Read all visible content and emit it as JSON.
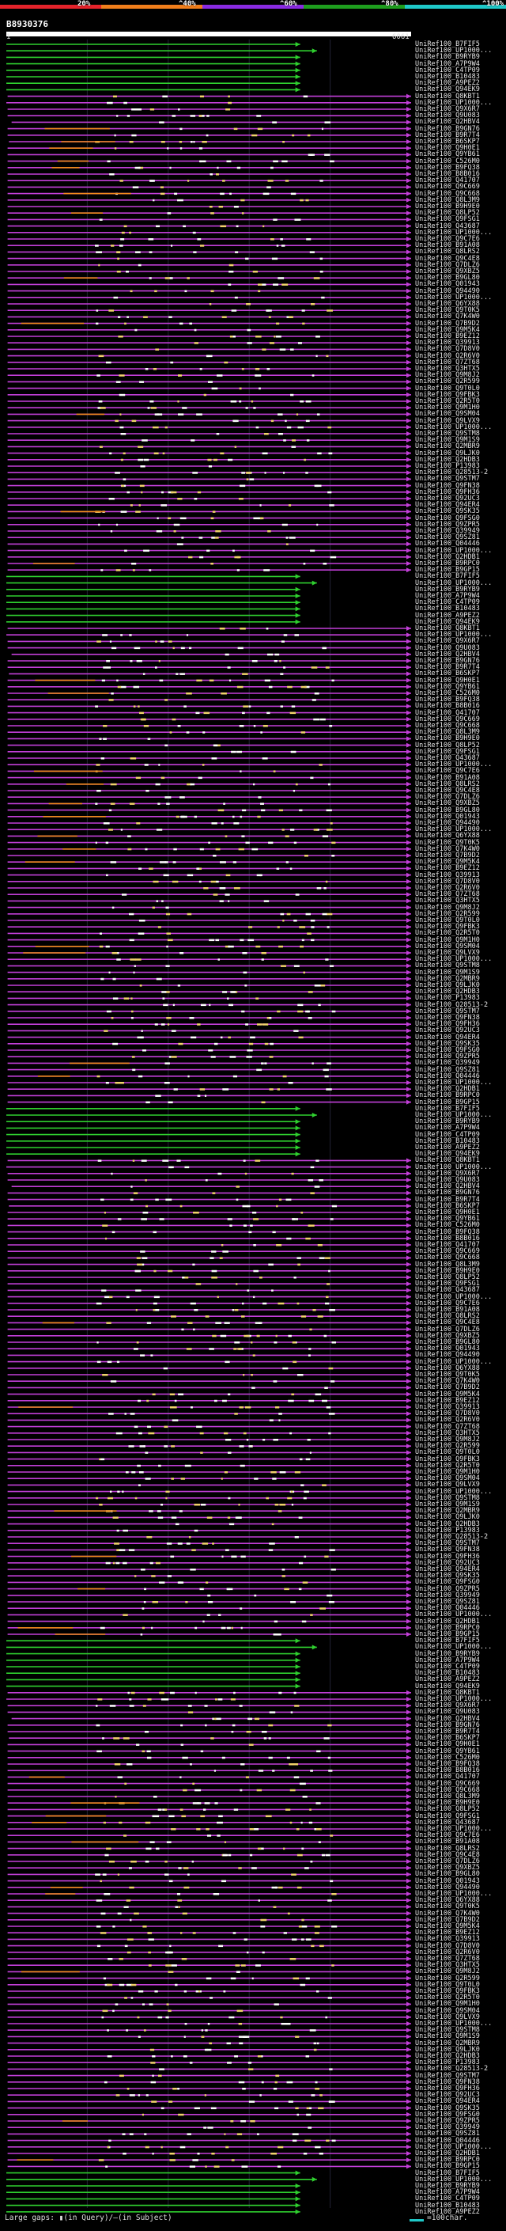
{
  "title": "B8930376",
  "scale": {
    "start": "1",
    "end": "6061"
  },
  "identity_ramp": [
    {
      "label": "20%",
      "color": "#e5232b"
    },
    {
      "label": "^40%",
      "color": "#f07e1b"
    },
    {
      "label": "^60%",
      "color": "#8a2be2"
    },
    {
      "label": "^80%",
      "color": "#1e9e1e"
    },
    {
      "label": "^100%",
      "color": "#1fc9c9"
    }
  ],
  "legend": {
    "large_gaps": "Large gaps:  ▮(in Query)/–(in Subject)",
    "scale_text": "=100char."
  },
  "chart_data": {
    "type": "alignment-overview",
    "title": "B8930376",
    "x_range": [
      1,
      6061
    ],
    "units": "query residues",
    "hits": [
      {
        "id": "UniRef100_B7FIF5",
        "start": 1,
        "end": 4400,
        "color": "green"
      },
      {
        "id": "UniRef100_UP1000...",
        "start": 1,
        "end": 4650,
        "color": "green"
      },
      {
        "id": "UniRef100_B9RYB9",
        "start": 1,
        "end": 4400,
        "color": "green"
      },
      {
        "id": "UniRef100_A7P9W4",
        "start": 1,
        "end": 4400,
        "color": "green"
      },
      {
        "id": "UniRef100_C4TP09",
        "start": 1,
        "end": 4400,
        "color": "green"
      },
      {
        "id": "UniRef100_B10483",
        "start": 1,
        "end": 4400,
        "color": "green"
      },
      {
        "id": "UniRef100_A9PEZ2",
        "start": 1,
        "end": 4400,
        "color": "green"
      },
      {
        "id": "UniRef100_Q94EK9",
        "start": 1,
        "end": 4400,
        "color": "green"
      },
      {
        "id": "UniRef100_Q8KBT1",
        "start": 20,
        "end": 6061,
        "color": "purple"
      },
      {
        "id": "UniRef100_UP1000...",
        "start": 1,
        "end": 6061,
        "color": "purple"
      },
      {
        "id": "UniRef100_Q9X6R7",
        "start": 20,
        "end": 6061,
        "color": "purple"
      },
      {
        "id": "UniRef100_Q9U083",
        "start": 20,
        "end": 6061,
        "color": "purple"
      },
      {
        "id": "UniRef100_Q2HBV4",
        "start": 80,
        "end": 6061,
        "color": "purple"
      },
      {
        "id": "UniRef100_B9GN76",
        "start": 20,
        "end": 6061,
        "color": "purple"
      },
      {
        "id": "UniRef100_B9R7T4",
        "start": 20,
        "end": 6061,
        "color": "purple"
      },
      {
        "id": "UniRef100_B6SKP7",
        "start": 40,
        "end": 6061,
        "color": "purple"
      },
      {
        "id": "UniRef100_Q9H0E1",
        "start": 20,
        "end": 6061,
        "color": "purple"
      },
      {
        "id": "UniRef100_Q9YB61",
        "start": 20,
        "end": 6061,
        "color": "purple"
      },
      {
        "id": "UniRef100_C526M0",
        "start": 20,
        "end": 6061,
        "color": "purple"
      },
      {
        "id": "UniRef100_B9FQ38",
        "start": 20,
        "end": 6061,
        "color": "purple"
      },
      {
        "id": "UniRef100_B8B016",
        "start": 20,
        "end": 6061,
        "color": "purple"
      },
      {
        "id": "UniRef100_Q41707",
        "start": 20,
        "end": 6061,
        "color": "purple"
      },
      {
        "id": "UniRef100_Q9C669",
        "start": 20,
        "end": 6061,
        "color": "purple"
      },
      {
        "id": "UniRef100_Q9C668",
        "start": 20,
        "end": 6061,
        "color": "purple"
      },
      {
        "id": "UniRef100_Q8L3M9",
        "start": 20,
        "end": 6061,
        "color": "purple"
      },
      {
        "id": "UniRef100_B9H9E0",
        "start": 20,
        "end": 6061,
        "color": "purple"
      },
      {
        "id": "UniRef100_Q8LP52",
        "start": 20,
        "end": 6061,
        "color": "purple"
      },
      {
        "id": "UniRef100_Q9FSG1",
        "start": 20,
        "end": 6061,
        "color": "purple"
      },
      {
        "id": "UniRef100_Q43687",
        "start": 20,
        "end": 6061,
        "color": "purple"
      },
      {
        "id": "UniRef100_UP1000...",
        "start": 20,
        "end": 6061,
        "color": "purple"
      },
      {
        "id": "UniRef100_Q9C7E6",
        "start": 20,
        "end": 6061,
        "color": "purple"
      },
      {
        "id": "UniRef100_B91A08",
        "start": 20,
        "end": 6061,
        "color": "purple"
      },
      {
        "id": "UniRef100_Q8LRS2",
        "start": 20,
        "end": 6061,
        "color": "purple"
      },
      {
        "id": "UniRef100_Q9C4E8",
        "start": 20,
        "end": 6061,
        "color": "purple"
      },
      {
        "id": "UniRef100_Q7DLZ6",
        "start": 20,
        "end": 6061,
        "color": "purple"
      },
      {
        "id": "UniRef100_Q9XBZ5",
        "start": 20,
        "end": 6061,
        "color": "purple"
      },
      {
        "id": "UniRef100_B9GL80",
        "start": 20,
        "end": 6061,
        "color": "purple"
      },
      {
        "id": "UniRef100_Q01943",
        "start": 20,
        "end": 6061,
        "color": "purple"
      },
      {
        "id": "UniRef100_Q94490",
        "start": 20,
        "end": 6061,
        "color": "purple"
      },
      {
        "id": "UniRef100_UP1000...",
        "start": 20,
        "end": 6061,
        "color": "purple"
      },
      {
        "id": "UniRef100_Q6YX88",
        "start": 20,
        "end": 6061,
        "color": "purple"
      },
      {
        "id": "UniRef100_Q9T0K5",
        "start": 20,
        "end": 6061,
        "color": "purple"
      },
      {
        "id": "UniRef100_Q7K4W0",
        "start": 20,
        "end": 6061,
        "color": "purple"
      },
      {
        "id": "UniRef100_Q7B9D2",
        "start": 20,
        "end": 6061,
        "color": "purple"
      },
      {
        "id": "UniRef100_Q9M5K4",
        "start": 20,
        "end": 6061,
        "color": "purple"
      },
      {
        "id": "UniRef100_B9EZ12",
        "start": 20,
        "end": 6061,
        "color": "purple"
      },
      {
        "id": "UniRef100_Q39913",
        "start": 20,
        "end": 6061,
        "color": "purple"
      },
      {
        "id": "UniRef100_Q7D8V0",
        "start": 20,
        "end": 6061,
        "color": "purple"
      },
      {
        "id": "UniRef100_Q2R6V0",
        "start": 20,
        "end": 6061,
        "color": "purple"
      },
      {
        "id": "UniRef100_Q7ZT68",
        "start": 20,
        "end": 6061,
        "color": "purple"
      },
      {
        "id": "UniRef100_Q3HTX5",
        "start": 20,
        "end": 6061,
        "color": "purple"
      },
      {
        "id": "UniRef100_Q9M8J2",
        "start": 20,
        "end": 6061,
        "color": "purple"
      },
      {
        "id": "UniRef100_Q2R599",
        "start": 20,
        "end": 6061,
        "color": "purple"
      },
      {
        "id": "UniRef100_Q9T0L0",
        "start": 20,
        "end": 6061,
        "color": "purple"
      },
      {
        "id": "UniRef100_Q9FBK3",
        "start": 20,
        "end": 6061,
        "color": "purple"
      },
      {
        "id": "UniRef100_Q2R5T0",
        "start": 20,
        "end": 6061,
        "color": "purple"
      },
      {
        "id": "UniRef100_Q9M1H0",
        "start": 20,
        "end": 6061,
        "color": "purple"
      },
      {
        "id": "UniRef100_Q9SM04",
        "start": 20,
        "end": 6061,
        "color": "purple"
      },
      {
        "id": "UniRef100_Q9LVX9",
        "start": 20,
        "end": 6061,
        "color": "purple"
      },
      {
        "id": "UniRef100_UP1000...",
        "start": 20,
        "end": 6061,
        "color": "purple"
      },
      {
        "id": "UniRef100_Q9STM8",
        "start": 20,
        "end": 6061,
        "color": "purple"
      },
      {
        "id": "UniRef100_Q9M1S9",
        "start": 20,
        "end": 6061,
        "color": "purple"
      },
      {
        "id": "UniRef100_Q2MBR9",
        "start": 20,
        "end": 6061,
        "color": "purple"
      },
      {
        "id": "UniRef100_Q9LJK0",
        "start": 20,
        "end": 6061,
        "color": "purple"
      },
      {
        "id": "UniRef100_Q2HDB3",
        "start": 20,
        "end": 6061,
        "color": "purple"
      },
      {
        "id": "UniRef100_P13983",
        "start": 20,
        "end": 6061,
        "color": "purple"
      },
      {
        "id": "UniRef100_Q28513-2",
        "start": 20,
        "end": 6061,
        "color": "purple"
      },
      {
        "id": "UniRef100_Q9STM7",
        "start": 20,
        "end": 6061,
        "color": "purple"
      },
      {
        "id": "UniRef100_Q9FN38",
        "start": 20,
        "end": 6061,
        "color": "purple"
      },
      {
        "id": "UniRef100_Q9FH36",
        "start": 20,
        "end": 6061,
        "color": "purple"
      },
      {
        "id": "UniRef100_Q92UC3",
        "start": 20,
        "end": 6061,
        "color": "purple"
      },
      {
        "id": "UniRef100_Q94ER4",
        "start": 20,
        "end": 6061,
        "color": "purple"
      },
      {
        "id": "UniRef100_Q9SK35",
        "start": 20,
        "end": 6061,
        "color": "purple"
      },
      {
        "id": "UniRef100_Q9FSG0",
        "start": 20,
        "end": 6061,
        "color": "purple"
      },
      {
        "id": "UniRef100_Q9ZPR5",
        "start": 20,
        "end": 6061,
        "color": "purple"
      },
      {
        "id": "UniRef100_Q39949",
        "start": 20,
        "end": 6061,
        "color": "purple"
      },
      {
        "id": "UniRef100_Q9SZ81",
        "start": 20,
        "end": 6061,
        "color": "purple"
      },
      {
        "id": "UniRef100_Q04446",
        "start": 20,
        "end": 6061,
        "color": "purple"
      },
      {
        "id": "UniRef100_UP1000...",
        "start": 20,
        "end": 6061,
        "color": "purple"
      },
      {
        "id": "UniRef100_Q2HDB1",
        "start": 20,
        "end": 6061,
        "color": "purple"
      },
      {
        "id": "UniRef100_B9RPC0",
        "start": 20,
        "end": 6061,
        "color": "purple"
      },
      {
        "id": "UniRef100_B9GP15",
        "start": 20,
        "end": 6061,
        "color": "purple"
      }
    ]
  }
}
